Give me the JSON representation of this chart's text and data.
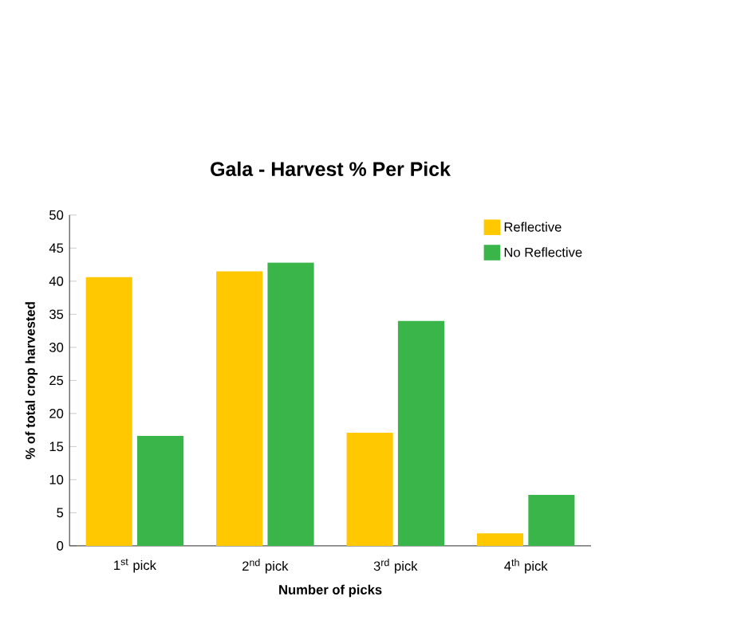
{
  "chart_data": {
    "type": "bar",
    "title": "Gala - Harvest % Per Pick",
    "xlabel": "Number of picks",
    "ylabel": "% of total crop harvested",
    "categories": [
      "1$^{st}$ pick",
      "2$^{nd}$ pick",
      "3$^{rd}$ pick",
      "4$^{th}$ pick"
    ],
    "series": [
      {
        "name": "Reflective",
        "color": "#ffc800",
        "values": [
          40.6,
          41.5,
          17.1,
          1.9
        ]
      },
      {
        "name": "No Reflective",
        "color": "#39b54a",
        "values": [
          16.6,
          42.8,
          34.0,
          7.7
        ]
      }
    ],
    "ylim": [
      0,
      50
    ],
    "yticks": [
      0,
      5,
      10,
      15,
      20,
      25,
      30,
      35,
      40,
      45,
      50
    ],
    "legend": "top right",
    "grid": false
  }
}
